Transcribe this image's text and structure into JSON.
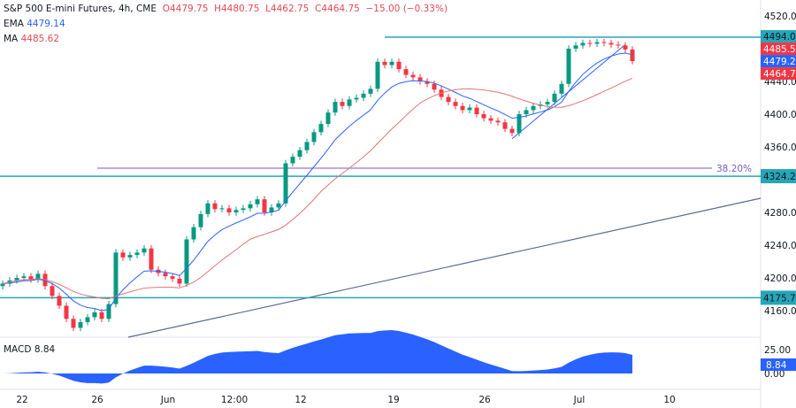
{
  "header": {
    "symbol": "S&P 500 E-mini Futures, 4h, CME",
    "open": "O4479.75",
    "high": "H4480.75",
    "low": "L4462.75",
    "close": "C4464.75",
    "change": "−15.00 (−0.33%)"
  },
  "indicators": {
    "ema_label": "EMA",
    "ema_value": "4479.14",
    "ma_label": "MA",
    "ma_value": "4485.62",
    "macd_label": "MACD",
    "macd_value": "8.84"
  },
  "chart_data": {
    "type": "candlestick",
    "ylim": [
      4130,
      4520
    ],
    "y_ticks": [
      "4520.00",
      "4440.00",
      "4400.00",
      "4360.00",
      "4280.00",
      "4240.00",
      "4200.00",
      "4160.00"
    ],
    "x_ticks": [
      "22",
      "26",
      "Jun",
      "12:00",
      "12",
      "19",
      "26",
      "Jul",
      "10"
    ],
    "closes": [
      4193,
      4197,
      4200,
      4202,
      4198,
      4205,
      4190,
      4178,
      4166,
      4150,
      4139,
      4146,
      4152,
      4158,
      4150,
      4168,
      4231,
      4225,
      4228,
      4231,
      4236,
      4210,
      4206,
      4202,
      4199,
      4193,
      4247,
      4262,
      4278,
      4291,
      4284,
      4285,
      4280,
      4283,
      4285,
      4290,
      4296,
      4280,
      4286,
      4291,
      4340,
      4348,
      4356,
      4366,
      4378,
      4388,
      4402,
      4415,
      4410,
      4418,
      4420,
      4425,
      4431,
      4464,
      4460,
      4464,
      4455,
      4448,
      4445,
      4440,
      4437,
      4430,
      4421,
      4415,
      4410,
      4405,
      4408,
      4400,
      4395,
      4392,
      4390,
      4382,
      4377,
      4400,
      4405,
      4410,
      4412,
      4415,
      4425,
      4437,
      4480,
      4484,
      4487,
      4486,
      4488,
      4487,
      4485,
      4484,
      4479,
      4464.75
    ],
    "levels": [
      {
        "price": 4494.0,
        "label": "4494.00"
      },
      {
        "price": 4324.25,
        "label": "4324.25"
      },
      {
        "price": 4175.75,
        "label": "4175.75"
      }
    ],
    "fib": {
      "price": 4334,
      "label": "38.20%"
    },
    "price_tags": [
      {
        "label": "4485.50",
        "color": "#f23645"
      },
      {
        "label": "4479.25",
        "color": "#2962ff"
      },
      {
        "label": "4464.75",
        "color": "#f23645"
      }
    ],
    "macd_ticks": [
      "25.00",
      "0.00"
    ],
    "colors": {
      "up": "#089981",
      "down": "#f23645",
      "ema": "#2962ff",
      "ma": "#e57373",
      "level": "#26a6b8",
      "fib": "#7e57c2",
      "macd": "#2962ff"
    }
  }
}
